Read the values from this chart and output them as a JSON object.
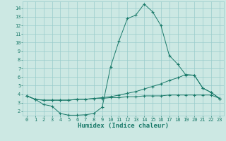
{
  "background_color": "#cce8e3",
  "grid_color": "#99cccc",
  "line_color": "#1a7a6a",
  "xlabel": "Humidex (Indice chaleur)",
  "xlim": [
    -0.5,
    23.5
  ],
  "ylim": [
    1.5,
    14.8
  ],
  "xticks": [
    0,
    1,
    2,
    3,
    4,
    5,
    6,
    7,
    8,
    9,
    10,
    11,
    12,
    13,
    14,
    15,
    16,
    17,
    18,
    19,
    20,
    21,
    22,
    23
  ],
  "yticks": [
    2,
    3,
    4,
    5,
    6,
    7,
    8,
    9,
    10,
    11,
    12,
    13,
    14
  ],
  "line1_x": [
    0,
    1,
    2,
    3,
    4,
    5,
    6,
    7,
    8,
    9,
    10,
    11,
    12,
    13,
    14,
    15,
    16,
    17,
    18,
    19,
    20,
    21,
    22,
    23
  ],
  "line1_y": [
    3.8,
    3.4,
    2.8,
    2.6,
    1.75,
    1.55,
    1.55,
    1.6,
    1.75,
    2.5,
    7.2,
    10.2,
    12.8,
    13.2,
    14.5,
    13.6,
    12.0,
    8.5,
    7.5,
    6.2,
    6.2,
    4.7,
    4.2,
    3.5
  ],
  "line2_x": [
    0,
    1,
    2,
    3,
    4,
    5,
    6,
    7,
    8,
    9,
    10,
    11,
    12,
    13,
    14,
    15,
    16,
    17,
    18,
    19,
    20,
    21,
    22,
    23
  ],
  "line2_y": [
    3.8,
    3.4,
    3.3,
    3.3,
    3.3,
    3.3,
    3.4,
    3.4,
    3.5,
    3.6,
    3.7,
    3.9,
    4.1,
    4.3,
    4.6,
    4.9,
    5.2,
    5.6,
    5.9,
    6.3,
    6.2,
    4.7,
    4.2,
    3.5
  ],
  "line3_x": [
    0,
    1,
    2,
    3,
    4,
    5,
    6,
    7,
    8,
    9,
    10,
    11,
    12,
    13,
    14,
    15,
    16,
    17,
    18,
    19,
    20,
    21,
    22,
    23
  ],
  "line3_y": [
    3.8,
    3.4,
    3.3,
    3.3,
    3.3,
    3.3,
    3.4,
    3.4,
    3.5,
    3.5,
    3.6,
    3.6,
    3.7,
    3.7,
    3.8,
    3.8,
    3.8,
    3.9,
    3.9,
    3.9,
    3.9,
    3.9,
    3.9,
    3.5
  ],
  "xlabel_fontsize": 6.5,
  "tick_fontsize": 5.0,
  "line_width": 0.7,
  "marker_size": 3.0
}
